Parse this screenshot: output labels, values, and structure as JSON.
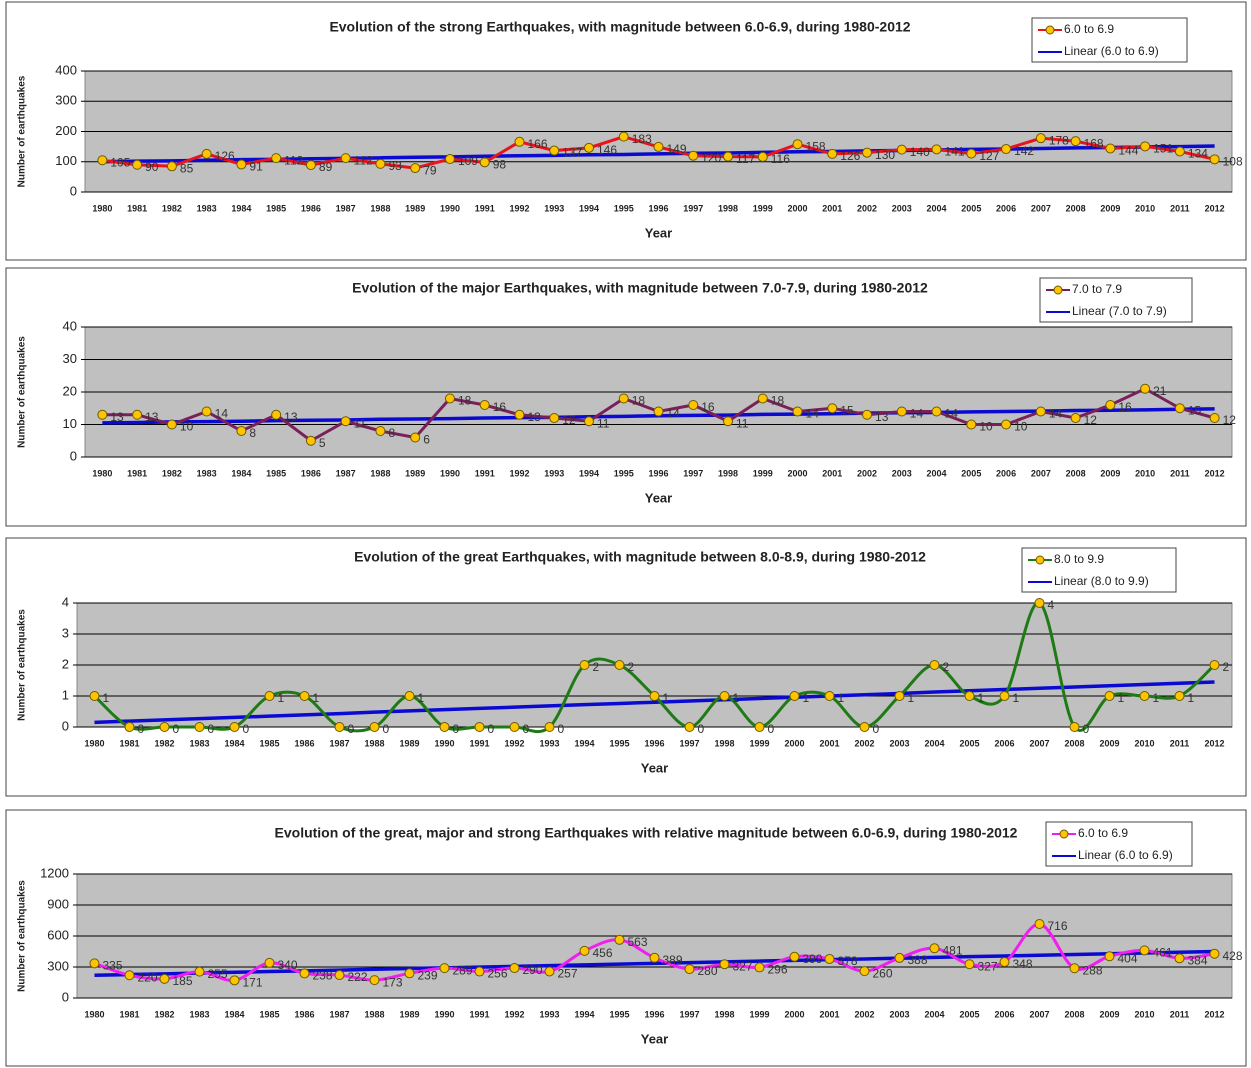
{
  "chart_data": [
    {
      "type": "line",
      "title": "Evolution of the strong Earthquakes, with magnitude between 6.0-6.9, during 1980-2012",
      "xlabel": "Year",
      "ylabel": "Number of earthquakes",
      "categories": [
        "1980",
        "1981",
        "1982",
        "1983",
        "1984",
        "1985",
        "1986",
        "1987",
        "1988",
        "1989",
        "1990",
        "1991",
        "1992",
        "1993",
        "1994",
        "1995",
        "1996",
        "1997",
        "1998",
        "1999",
        "2000",
        "2001",
        "2002",
        "2003",
        "2004",
        "2005",
        "2006",
        "2007",
        "2008",
        "2009",
        "2010",
        "2011",
        "2012"
      ],
      "series": [
        {
          "name": "6.0 to 6.9",
          "color": "#e8141c",
          "marker": true,
          "values": [
            105,
            90,
            85,
            126,
            91,
            112,
            89,
            112,
            93,
            79,
            109,
            98,
            166,
            137,
            146,
            183,
            149,
            120,
            117,
            116,
            158,
            126,
            130,
            140,
            141,
            127,
            142,
            178,
            168,
            144,
            151,
            134,
            108
          ]
        },
        {
          "name": "Linear (6.0 to 6.9)",
          "color": "#0a0ad2",
          "marker": false,
          "values": [
            100,
            102,
            103,
            105,
            107,
            108,
            110,
            111,
            113,
            115,
            116,
            118,
            120,
            121,
            123,
            124,
            126,
            128,
            129,
            131,
            133,
            134,
            136,
            137,
            139,
            141,
            142,
            144,
            146,
            147,
            149,
            150,
            152
          ]
        }
      ],
      "ylim": [
        0,
        400
      ],
      "yticks": [
        0,
        100,
        200,
        300,
        400
      ],
      "grid": true
    },
    {
      "type": "line",
      "title": "Evolution of the major Earthquakes, with magnitude between 7.0-7.9, during 1980-2012",
      "xlabel": "Year",
      "ylabel": "Number of earthquakes",
      "categories": [
        "1980",
        "1981",
        "1982",
        "1983",
        "1984",
        "1985",
        "1986",
        "1987",
        "1988",
        "1989",
        "1990",
        "1991",
        "1992",
        "1993",
        "1994",
        "1995",
        "1996",
        "1997",
        "1998",
        "1999",
        "2000",
        "2001",
        "2002",
        "2003",
        "2004",
        "2005",
        "2006",
        "2007",
        "2008",
        "2009",
        "2010",
        "2011",
        "2012"
      ],
      "series": [
        {
          "name": "7.0 to 7.9",
          "color": "#7a1f5a",
          "marker": true,
          "values": [
            13,
            13,
            10,
            14,
            8,
            13,
            5,
            11,
            8,
            6,
            18,
            16,
            13,
            12,
            11,
            18,
            14,
            16,
            11,
            18,
            14,
            15,
            13,
            14,
            14,
            10,
            10,
            14,
            12,
            16,
            21,
            15,
            12
          ]
        },
        {
          "name": "Linear (7.0 to 7.9)",
          "color": "#0a0ad2",
          "marker": false,
          "values": [
            10.5,
            10.6,
            10.8,
            10.9,
            11.0,
            11.2,
            11.3,
            11.4,
            11.6,
            11.7,
            11.8,
            12.0,
            12.1,
            12.2,
            12.4,
            12.5,
            12.7,
            12.8,
            12.9,
            13.1,
            13.2,
            13.3,
            13.5,
            13.6,
            13.7,
            13.9,
            14.0,
            14.1,
            14.3,
            14.4,
            14.5,
            14.7,
            14.8
          ]
        }
      ],
      "ylim": [
        0,
        40
      ],
      "yticks": [
        0,
        10,
        20,
        30,
        40
      ],
      "grid": true
    },
    {
      "type": "line",
      "title": "Evolution of the great Earthquakes, with magnitude between 8.0-8.9, during 1980-2012",
      "xlabel": "Year",
      "ylabel": "Number of earthquakes",
      "categories": [
        "1980",
        "1981",
        "1982",
        "1983",
        "1984",
        "1985",
        "1986",
        "1987",
        "1988",
        "1989",
        "1990",
        "1991",
        "1992",
        "1993",
        "1994",
        "1995",
        "1996",
        "1997",
        "1998",
        "1999",
        "2000",
        "2001",
        "2002",
        "2003",
        "2004",
        "2005",
        "2006",
        "2007",
        "2008",
        "2009",
        "2010",
        "2011",
        "2012"
      ],
      "series": [
        {
          "name": "8.0 to 9.9",
          "color": "#1e7a14",
          "marker": true,
          "smooth": true,
          "values": [
            1,
            0,
            0,
            0,
            0,
            1,
            1,
            0,
            0,
            1,
            0,
            0,
            0,
            0,
            2,
            2,
            1,
            0,
            1,
            0,
            1,
            1,
            0,
            1,
            2,
            1,
            1,
            4,
            0,
            1,
            1,
            1,
            2
          ]
        },
        {
          "name": "Linear (8.0 to 9.9)",
          "color": "#0a0ad2",
          "marker": false,
          "values": [
            0.15,
            0.19,
            0.23,
            0.27,
            0.31,
            0.35,
            0.39,
            0.43,
            0.48,
            0.52,
            0.56,
            0.6,
            0.64,
            0.68,
            0.72,
            0.76,
            0.8,
            0.84,
            0.88,
            0.92,
            0.96,
            1.0,
            1.04,
            1.08,
            1.13,
            1.17,
            1.21,
            1.25,
            1.29,
            1.33,
            1.37,
            1.41,
            1.45
          ]
        }
      ],
      "ylim": [
        0,
        4
      ],
      "yticks": [
        0,
        1,
        2,
        3,
        4
      ],
      "grid": true
    },
    {
      "type": "line",
      "title": "Evolution of the great, major and strong Earthquakes with relative magnitude between 6.0-6.9, during 1980-2012",
      "xlabel": "Year",
      "ylabel": "Number of earthquakes",
      "categories": [
        "1980",
        "1981",
        "1982",
        "1983",
        "1984",
        "1985",
        "1986",
        "1987",
        "1988",
        "1989",
        "1990",
        "1991",
        "1992",
        "1993",
        "1994",
        "1995",
        "1996",
        "1997",
        "1998",
        "1999",
        "2000",
        "2001",
        "2002",
        "2003",
        "2004",
        "2005",
        "2006",
        "2007",
        "2008",
        "2009",
        "2010",
        "2011",
        "2012"
      ],
      "series": [
        {
          "name": "6.0 to 6.9",
          "color": "#f01ef0",
          "marker": true,
          "smooth": true,
          "values": [
            335,
            220,
            185,
            255,
            171,
            340,
            238,
            222,
            173,
            239,
            289,
            256,
            290,
            257,
            456,
            563,
            389,
            280,
            327,
            296,
            399,
            378,
            260,
            388,
            481,
            327,
            348,
            716,
            288,
            404,
            461,
            384,
            428
          ]
        },
        {
          "name": "Linear (6.0 to 6.9)",
          "color": "#0a0ad2",
          "marker": false,
          "values": [
            220,
            227,
            234,
            242,
            249,
            256,
            263,
            270,
            278,
            285,
            292,
            299,
            306,
            313,
            321,
            328,
            335,
            342,
            349,
            357,
            364,
            371,
            378,
            385,
            393,
            400,
            407,
            414,
            421,
            428,
            436,
            443,
            450
          ]
        }
      ],
      "ylim": [
        0,
        1200
      ],
      "yticks": [
        0,
        300,
        600,
        900,
        1200
      ],
      "grid": true
    }
  ]
}
